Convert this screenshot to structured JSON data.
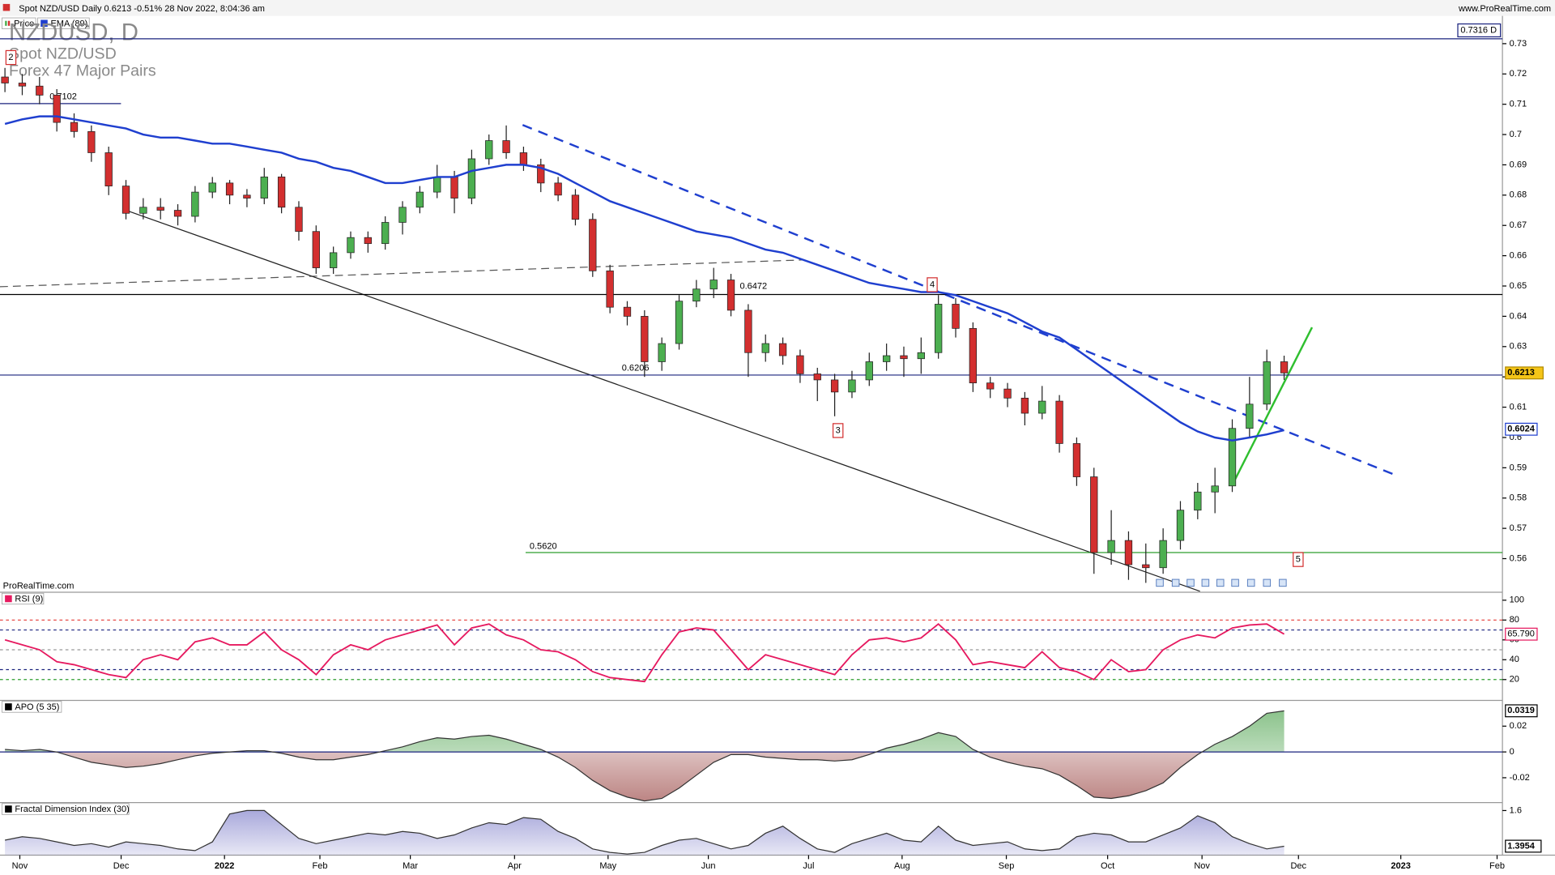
{
  "chart_data": {
    "type": "candlestick",
    "header": "Spot NZD/USD Daily 0.6213 -0.51% 28 Nov 2022, 8:04:36 am",
    "site": "www.ProRealTime.com",
    "watermark": "ProRealTime.com",
    "title": "NZDUSD, D",
    "subtitle": "Spot NZD/USD",
    "group": "Forex 47 Major Pairs",
    "price_name": "Price",
    "up_color": "#4caf50",
    "down_color": "#d32f2f",
    "xlim": [
      -0.287,
      86.63
    ],
    "xticks": [
      {
        "value": 0.86,
        "label": "Nov"
      },
      {
        "value": 6.72,
        "label": "Dec"
      },
      {
        "value": 12.7,
        "label": "2022"
      },
      {
        "value": 18.22,
        "label": "Feb"
      },
      {
        "value": 23.45,
        "label": "Mar"
      },
      {
        "value": 29.48,
        "label": "Apr"
      },
      {
        "value": 34.89,
        "label": "May"
      },
      {
        "value": 40.69,
        "label": "Jun"
      },
      {
        "value": 46.49,
        "label": "Jul"
      },
      {
        "value": 51.9,
        "label": "Aug"
      },
      {
        "value": 57.93,
        "label": "Sep"
      },
      {
        "value": 63.79,
        "label": "Oct"
      },
      {
        "value": 69.25,
        "label": "Nov"
      },
      {
        "value": 74.83,
        "label": "Dec"
      },
      {
        "value": 80.75,
        "label": "2023"
      },
      {
        "value": 86.32,
        "label": "Feb"
      }
    ],
    "ylim": [
      0.5489,
      0.7395
    ],
    "yticks": [
      0.56,
      0.57,
      0.58,
      0.59,
      0.6,
      0.61,
      0.62,
      0.63,
      0.64,
      0.65,
      0.66,
      0.67,
      0.68,
      0.69,
      0.7,
      0.71,
      0.72,
      0.73
    ],
    "candles": [
      [
        0.719,
        0.722,
        0.714,
        0.717
      ],
      [
        0.717,
        0.72,
        0.713,
        0.716
      ],
      [
        0.716,
        0.719,
        0.71,
        0.713
      ],
      [
        0.713,
        0.715,
        0.701,
        0.704
      ],
      [
        0.704,
        0.707,
        0.699,
        0.701
      ],
      [
        0.701,
        0.703,
        0.691,
        0.694
      ],
      [
        0.694,
        0.696,
        0.68,
        0.683
      ],
      [
        0.683,
        0.685,
        0.672,
        0.674
      ],
      [
        0.674,
        0.679,
        0.672,
        0.676
      ],
      [
        0.676,
        0.679,
        0.672,
        0.675
      ],
      [
        0.675,
        0.677,
        0.67,
        0.673
      ],
      [
        0.673,
        0.683,
        0.671,
        0.681
      ],
      [
        0.681,
        0.686,
        0.679,
        0.684
      ],
      [
        0.684,
        0.685,
        0.677,
        0.68
      ],
      [
        0.68,
        0.682,
        0.676,
        0.679
      ],
      [
        0.679,
        0.689,
        0.677,
        0.686
      ],
      [
        0.686,
        0.687,
        0.674,
        0.676
      ],
      [
        0.676,
        0.678,
        0.665,
        0.668
      ],
      [
        0.668,
        0.67,
        0.654,
        0.656
      ],
      [
        0.656,
        0.663,
        0.654,
        0.661
      ],
      [
        0.661,
        0.668,
        0.659,
        0.666
      ],
      [
        0.666,
        0.668,
        0.661,
        0.664
      ],
      [
        0.664,
        0.673,
        0.662,
        0.671
      ],
      [
        0.671,
        0.678,
        0.667,
        0.676
      ],
      [
        0.676,
        0.683,
        0.674,
        0.681
      ],
      [
        0.681,
        0.69,
        0.679,
        0.686
      ],
      [
        0.686,
        0.688,
        0.674,
        0.679
      ],
      [
        0.679,
        0.695,
        0.677,
        0.692
      ],
      [
        0.692,
        0.7,
        0.69,
        0.698
      ],
      [
        0.698,
        0.703,
        0.692,
        0.694
      ],
      [
        0.694,
        0.696,
        0.688,
        0.69
      ],
      [
        0.69,
        0.692,
        0.681,
        0.684
      ],
      [
        0.684,
        0.686,
        0.678,
        0.68
      ],
      [
        0.68,
        0.682,
        0.67,
        0.672
      ],
      [
        0.672,
        0.674,
        0.653,
        0.655
      ],
      [
        0.655,
        0.657,
        0.641,
        0.643
      ],
      [
        0.643,
        0.645,
        0.637,
        0.64
      ],
      [
        0.64,
        0.642,
        0.62,
        0.625
      ],
      [
        0.625,
        0.633,
        0.622,
        0.631
      ],
      [
        0.631,
        0.647,
        0.629,
        0.645
      ],
      [
        0.645,
        0.652,
        0.643,
        0.649
      ],
      [
        0.649,
        0.656,
        0.646,
        0.652
      ],
      [
        0.652,
        0.654,
        0.64,
        0.642
      ],
      [
        0.642,
        0.644,
        0.62,
        0.628
      ],
      [
        0.628,
        0.634,
        0.625,
        0.631
      ],
      [
        0.631,
        0.633,
        0.624,
        0.627
      ],
      [
        0.627,
        0.629,
        0.618,
        0.621
      ],
      [
        0.621,
        0.623,
        0.612,
        0.619
      ],
      [
        0.619,
        0.621,
        0.607,
        0.615
      ],
      [
        0.615,
        0.622,
        0.613,
        0.619
      ],
      [
        0.619,
        0.628,
        0.617,
        0.625
      ],
      [
        0.625,
        0.631,
        0.622,
        0.627
      ],
      [
        0.627,
        0.63,
        0.62,
        0.626
      ],
      [
        0.626,
        0.633,
        0.621,
        0.628
      ],
      [
        0.628,
        0.647,
        0.626,
        0.644
      ],
      [
        0.644,
        0.646,
        0.633,
        0.636
      ],
      [
        0.636,
        0.638,
        0.615,
        0.618
      ],
      [
        0.618,
        0.62,
        0.613,
        0.616
      ],
      [
        0.616,
        0.618,
        0.61,
        0.613
      ],
      [
        0.613,
        0.615,
        0.604,
        0.608
      ],
      [
        0.608,
        0.617,
        0.606,
        0.612
      ],
      [
        0.612,
        0.614,
        0.595,
        0.598
      ],
      [
        0.598,
        0.6,
        0.584,
        0.587
      ],
      [
        0.587,
        0.59,
        0.555,
        0.562
      ],
      [
        0.562,
        0.576,
        0.558,
        0.566
      ],
      [
        0.566,
        0.569,
        0.553,
        0.558
      ],
      [
        0.558,
        0.565,
        0.552,
        0.557
      ],
      [
        0.557,
        0.57,
        0.555,
        0.566
      ],
      [
        0.566,
        0.579,
        0.563,
        0.576
      ],
      [
        0.576,
        0.585,
        0.573,
        0.582
      ],
      [
        0.582,
        0.59,
        0.575,
        0.584
      ],
      [
        0.584,
        0.606,
        0.582,
        0.603
      ],
      [
        0.603,
        0.62,
        0.6,
        0.611
      ],
      [
        0.611,
        0.629,
        0.609,
        0.625
      ],
      [
        0.625,
        0.627,
        0.619,
        0.6213
      ]
    ],
    "ema": {
      "name": "EMA (89)",
      "color": "#1f3fcf",
      "values": [
        0.7035,
        0.705,
        0.706,
        0.706,
        0.705,
        0.704,
        0.703,
        0.702,
        0.7,
        0.699,
        0.699,
        0.698,
        0.697,
        0.697,
        0.696,
        0.695,
        0.694,
        0.692,
        0.691,
        0.689,
        0.688,
        0.686,
        0.684,
        0.684,
        0.685,
        0.686,
        0.686,
        0.688,
        0.689,
        0.69,
        0.69,
        0.689,
        0.687,
        0.684,
        0.681,
        0.678,
        0.676,
        0.674,
        0.672,
        0.67,
        0.668,
        0.667,
        0.666,
        0.664,
        0.662,
        0.661,
        0.659,
        0.657,
        0.655,
        0.653,
        0.651,
        0.65,
        0.649,
        0.648,
        0.648,
        0.647,
        0.645,
        0.643,
        0.641,
        0.638,
        0.635,
        0.633,
        0.629,
        0.625,
        0.621,
        0.617,
        0.613,
        0.609,
        0.605,
        0.602,
        0.6,
        0.599,
        0.6,
        0.601,
        0.6024
      ]
    },
    "levels": [
      {
        "value": 0.7316,
        "label": "0.7316 D",
        "color": "#1a237e"
      },
      {
        "value": 0.7102,
        "label": "0.7102",
        "color": "#1a237e"
      },
      {
        "value": 0.6472,
        "label": "0.6472",
        "color": "#000000"
      },
      {
        "value": 0.6206,
        "label": "0.6206",
        "color": "#1a237e"
      },
      {
        "value": 0.562,
        "label": "0.5620",
        "color": "#2e9e2e"
      }
    ],
    "wave_labels": [
      "2",
      "3",
      "4",
      "5"
    ],
    "rsi": {
      "name": "RSI (9)",
      "color": "#e6195f",
      "ylim": [
        0,
        107
      ],
      "yticks": [
        20,
        40,
        60,
        80,
        100
      ],
      "last_label": "65.790",
      "levels": [
        {
          "value": 80,
          "color": "#e53935"
        },
        {
          "value": 70,
          "color": "#1a237e"
        },
        {
          "value": 50,
          "color": "#999999"
        },
        {
          "value": 30,
          "color": "#1a237e"
        },
        {
          "value": 20,
          "color": "#2e9e2e"
        }
      ],
      "values": [
        60,
        55,
        50,
        38,
        35,
        30,
        25,
        22,
        40,
        45,
        40,
        58,
        62,
        55,
        55,
        68,
        50,
        40,
        25,
        45,
        55,
        50,
        60,
        65,
        70,
        75,
        55,
        72,
        76,
        65,
        60,
        50,
        48,
        40,
        28,
        22,
        20,
        18,
        45,
        68,
        72,
        70,
        50,
        30,
        45,
        40,
        35,
        30,
        25,
        45,
        60,
        62,
        58,
        62,
        76,
        60,
        35,
        38,
        35,
        32,
        48,
        32,
        28,
        20,
        40,
        28,
        30,
        50,
        60,
        65,
        62,
        72,
        75,
        76,
        65.79
      ]
    },
    "apo": {
      "name": "APO (5 35)",
      "ylim": [
        -0.0385,
        0.0392
      ],
      "yticks": [
        -0.02,
        0,
        0.02
      ],
      "pos_color": "#5aa95a",
      "neg_color": "#a0514f",
      "values": [
        0.002,
        0.001,
        0.002,
        0,
        -0.004,
        -0.008,
        -0.01,
        -0.012,
        -0.011,
        -0.009,
        -0.006,
        -0.003,
        -0.001,
        0,
        0.001,
        0.001,
        -0.001,
        -0.004,
        -0.006,
        -0.006,
        -0.004,
        -0.002,
        0.001,
        0.004,
        0.008,
        0.011,
        0.01,
        0.012,
        0.013,
        0.01,
        0.006,
        0.002,
        -0.004,
        -0.012,
        -0.022,
        -0.03,
        -0.035,
        -0.038,
        -0.036,
        -0.028,
        -0.018,
        -0.008,
        -0.002,
        -0.002,
        -0.004,
        -0.005,
        -0.006,
        -0.006,
        -0.007,
        -0.006,
        -0.002,
        0.003,
        0.006,
        0.01,
        0.015,
        0.012,
        0.002,
        -0.004,
        -0.008,
        -0.011,
        -0.013,
        -0.018,
        -0.026,
        -0.035,
        -0.036,
        -0.034,
        -0.03,
        -0.024,
        -0.012,
        -0.002,
        0.006,
        0.012,
        0.02,
        0.03,
        0.0319
      ]
    },
    "fdi": {
      "name": "Fractal Dimension Index (30)",
      "ylim": [
        1.344,
        1.64
      ],
      "yticks": [
        1.6
      ],
      "color": "#8c8ccf",
      "values": [
        1.43,
        1.45,
        1.44,
        1.42,
        1.4,
        1.41,
        1.39,
        1.42,
        1.41,
        1.4,
        1.38,
        1.37,
        1.42,
        1.58,
        1.6,
        1.6,
        1.52,
        1.44,
        1.41,
        1.43,
        1.45,
        1.47,
        1.46,
        1.48,
        1.47,
        1.44,
        1.46,
        1.5,
        1.53,
        1.52,
        1.56,
        1.55,
        1.48,
        1.44,
        1.38,
        1.36,
        1.35,
        1.36,
        1.4,
        1.43,
        1.44,
        1.41,
        1.38,
        1.4,
        1.47,
        1.51,
        1.44,
        1.38,
        1.36,
        1.41,
        1.44,
        1.47,
        1.43,
        1.42,
        1.51,
        1.43,
        1.4,
        1.41,
        1.42,
        1.38,
        1.37,
        1.38,
        1.45,
        1.47,
        1.46,
        1.42,
        1.42,
        1.46,
        1.5,
        1.57,
        1.53,
        1.45,
        1.41,
        1.38,
        1.3954
      ]
    }
  }
}
